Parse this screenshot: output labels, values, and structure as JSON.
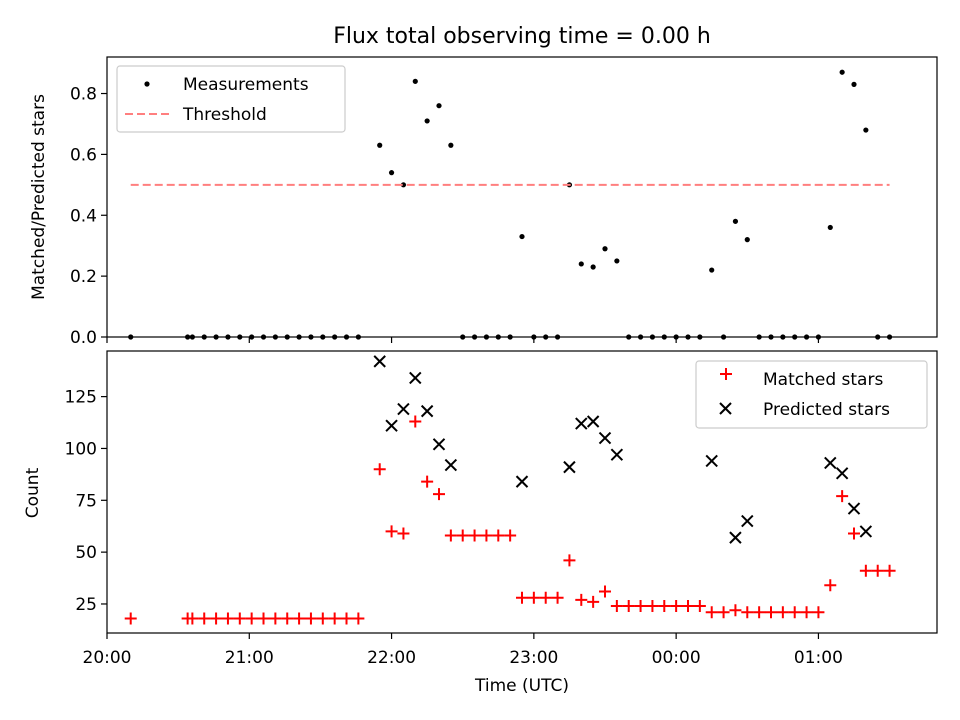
{
  "chart_data": [
    {
      "type": "scatter",
      "title": "Flux total observing time = 0.00 h",
      "xlabel": "",
      "ylabel": "Matched/Predicted stars",
      "x_axis": "time_utc",
      "xlim": [
        "20:00",
        "01:50"
      ],
      "ylim": [
        0,
        0.92
      ],
      "yticks": [
        0.0,
        0.2,
        0.4,
        0.6,
        0.8
      ],
      "ytick_labels": [
        "0.0",
        "0.2",
        "0.4",
        "0.6",
        "0.8"
      ],
      "legend": "upper-left",
      "series": [
        {
          "name": "Measurements",
          "marker": "dot",
          "color": "#000000",
          "points": [
            [
              "20:10",
              0.0
            ],
            [
              "20:34",
              0.0
            ],
            [
              "20:36",
              0.0
            ],
            [
              "20:41",
              0.0
            ],
            [
              "20:46",
              0.0
            ],
            [
              "20:51",
              0.0
            ],
            [
              "20:56",
              0.0
            ],
            [
              "21:01",
              0.0
            ],
            [
              "21:06",
              0.0
            ],
            [
              "21:11",
              0.0
            ],
            [
              "21:16",
              0.0
            ],
            [
              "21:21",
              0.0
            ],
            [
              "21:26",
              0.0
            ],
            [
              "21:31",
              0.0
            ],
            [
              "21:36",
              0.0
            ],
            [
              "21:41",
              0.0
            ],
            [
              "21:46",
              0.0
            ],
            [
              "21:55",
              0.63
            ],
            [
              "22:00",
              0.54
            ],
            [
              "22:05",
              0.5
            ],
            [
              "22:10",
              0.84
            ],
            [
              "22:15",
              0.71
            ],
            [
              "22:20",
              0.76
            ],
            [
              "22:25",
              0.63
            ],
            [
              "22:30",
              0.0
            ],
            [
              "22:35",
              0.0
            ],
            [
              "22:40",
              0.0
            ],
            [
              "22:45",
              0.0
            ],
            [
              "22:50",
              0.0
            ],
            [
              "22:55",
              0.33
            ],
            [
              "23:00",
              0.0
            ],
            [
              "23:05",
              0.0
            ],
            [
              "23:10",
              0.0
            ],
            [
              "23:15",
              0.5
            ],
            [
              "23:20",
              0.24
            ],
            [
              "23:25",
              0.23
            ],
            [
              "23:30",
              0.29
            ],
            [
              "23:35",
              0.25
            ],
            [
              "23:40",
              0.0
            ],
            [
              "23:45",
              0.0
            ],
            [
              "23:50",
              0.0
            ],
            [
              "23:55",
              0.0
            ],
            [
              "00:00",
              0.0
            ],
            [
              "00:05",
              0.0
            ],
            [
              "00:10",
              0.0
            ],
            [
              "00:15",
              0.22
            ],
            [
              "00:20",
              0.0
            ],
            [
              "00:25",
              0.38
            ],
            [
              "00:30",
              0.32
            ],
            [
              "00:35",
              0.0
            ],
            [
              "00:40",
              0.0
            ],
            [
              "00:45",
              0.0
            ],
            [
              "00:50",
              0.0
            ],
            [
              "00:55",
              0.0
            ],
            [
              "01:00",
              0.0
            ],
            [
              "01:05",
              0.36
            ],
            [
              "01:10",
              0.87
            ],
            [
              "01:15",
              0.83
            ],
            [
              "01:20",
              0.68
            ],
            [
              "01:25",
              0.0
            ],
            [
              "01:30",
              0.0
            ]
          ]
        },
        {
          "name": "Threshold",
          "marker": "dashed-line",
          "color": "#ff7f7f",
          "points": [
            [
              "20:10",
              0.5
            ],
            [
              "01:30",
              0.5
            ]
          ]
        }
      ]
    },
    {
      "type": "scatter",
      "title": "",
      "xlabel": "Time (UTC)",
      "ylabel": "Count",
      "x_axis": "time_utc",
      "xlim": [
        "20:00",
        "01:50"
      ],
      "ylim": [
        11,
        147
      ],
      "yticks": [
        25,
        50,
        75,
        100,
        125
      ],
      "ytick_labels": [
        "25",
        "50",
        "75",
        "100",
        "125"
      ],
      "xticks": [
        "20:00",
        "21:00",
        "22:00",
        "23:00",
        "00:00",
        "01:00"
      ],
      "xtick_labels": [
        "20:00",
        "21:00",
        "22:00",
        "23:00",
        "00:00",
        "01:00"
      ],
      "legend": "upper-right",
      "series": [
        {
          "name": "Matched stars",
          "marker": "plus",
          "color": "#ff0000",
          "points": [
            [
              "20:10",
              18
            ],
            [
              "20:34",
              18
            ],
            [
              "20:36",
              18
            ],
            [
              "20:41",
              18
            ],
            [
              "20:46",
              18
            ],
            [
              "20:51",
              18
            ],
            [
              "20:56",
              18
            ],
            [
              "21:01",
              18
            ],
            [
              "21:06",
              18
            ],
            [
              "21:11",
              18
            ],
            [
              "21:16",
              18
            ],
            [
              "21:21",
              18
            ],
            [
              "21:26",
              18
            ],
            [
              "21:31",
              18
            ],
            [
              "21:36",
              18
            ],
            [
              "21:41",
              18
            ],
            [
              "21:46",
              18
            ],
            [
              "21:55",
              90
            ],
            [
              "22:00",
              60
            ],
            [
              "22:05",
              59
            ],
            [
              "22:10",
              113
            ],
            [
              "22:15",
              84
            ],
            [
              "22:20",
              78
            ],
            [
              "22:25",
              58
            ],
            [
              "22:30",
              58
            ],
            [
              "22:35",
              58
            ],
            [
              "22:40",
              58
            ],
            [
              "22:45",
              58
            ],
            [
              "22:50",
              58
            ],
            [
              "22:55",
              28
            ],
            [
              "23:00",
              28
            ],
            [
              "23:05",
              28
            ],
            [
              "23:10",
              28
            ],
            [
              "23:15",
              46
            ],
            [
              "23:20",
              27
            ],
            [
              "23:25",
              26
            ],
            [
              "23:30",
              31
            ],
            [
              "23:35",
              24
            ],
            [
              "23:40",
              24
            ],
            [
              "23:45",
              24
            ],
            [
              "23:50",
              24
            ],
            [
              "23:55",
              24
            ],
            [
              "00:00",
              24
            ],
            [
              "00:05",
              24
            ],
            [
              "00:10",
              24
            ],
            [
              "00:15",
              21
            ],
            [
              "00:20",
              21
            ],
            [
              "00:25",
              22
            ],
            [
              "00:30",
              21
            ],
            [
              "00:35",
              21
            ],
            [
              "00:40",
              21
            ],
            [
              "00:45",
              21
            ],
            [
              "00:50",
              21
            ],
            [
              "00:55",
              21
            ],
            [
              "01:00",
              21
            ],
            [
              "01:05",
              34
            ],
            [
              "01:10",
              77
            ],
            [
              "01:15",
              59
            ],
            [
              "01:20",
              41
            ],
            [
              "01:25",
              41
            ],
            [
              "01:30",
              41
            ]
          ]
        },
        {
          "name": "Predicted stars",
          "marker": "x",
          "color": "#000000",
          "points": [
            [
              "21:55",
              142
            ],
            [
              "22:00",
              111
            ],
            [
              "22:05",
              119
            ],
            [
              "22:10",
              134
            ],
            [
              "22:15",
              118
            ],
            [
              "22:20",
              102
            ],
            [
              "22:25",
              92
            ],
            [
              "22:55",
              84
            ],
            [
              "23:15",
              91
            ],
            [
              "23:20",
              112
            ],
            [
              "23:25",
              113
            ],
            [
              "23:30",
              105
            ],
            [
              "23:35",
              97
            ],
            [
              "00:15",
              94
            ],
            [
              "00:25",
              57
            ],
            [
              "00:30",
              65
            ],
            [
              "01:05",
              93
            ],
            [
              "01:10",
              88
            ],
            [
              "01:15",
              71
            ],
            [
              "01:20",
              60
            ]
          ]
        }
      ]
    }
  ]
}
